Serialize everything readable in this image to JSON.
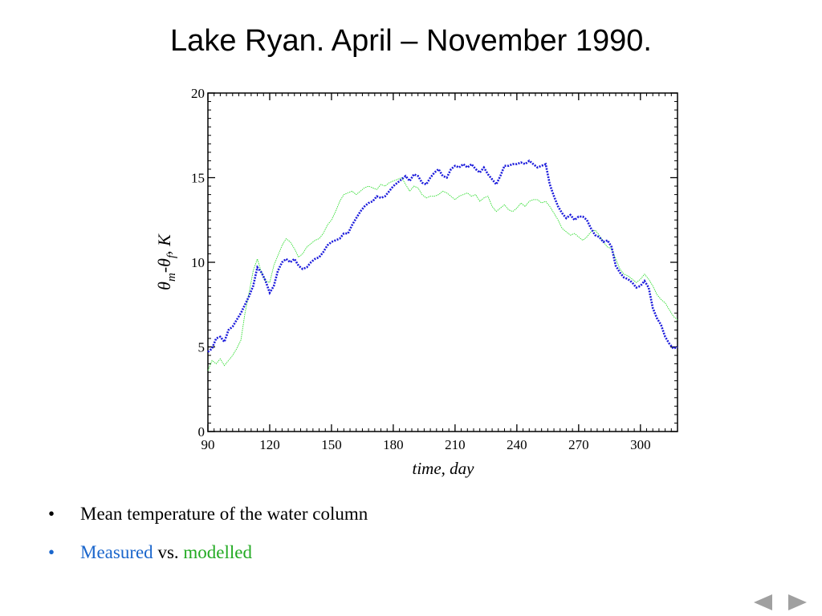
{
  "title": "Lake Ryan. April – November 1990.",
  "chart_data": {
    "type": "line",
    "xlabel": "time, day",
    "ylabel": {
      "theta1": "θ",
      "sub1": "m",
      "dash": "-",
      "theta2": "θ",
      "sub2": "f",
      "unit": ", K"
    },
    "xlim": [
      90,
      318
    ],
    "ylim": [
      0,
      20
    ],
    "xticks": [
      90,
      120,
      150,
      180,
      210,
      240,
      270,
      300
    ],
    "yticks": [
      0,
      5,
      10,
      15,
      20
    ],
    "grid": false,
    "series": [
      {
        "name": "Measured",
        "color": "#1a1adb",
        "style": "dotted-thick",
        "x": [
          90,
          92,
          94,
          96,
          98,
          100,
          102,
          104,
          106,
          108,
          110,
          112,
          114,
          116,
          118,
          120,
          122,
          124,
          126,
          128,
          130,
          132,
          134,
          136,
          138,
          140,
          142,
          144,
          146,
          148,
          150,
          152,
          154,
          156,
          158,
          160,
          162,
          164,
          166,
          168,
          170,
          172,
          174,
          176,
          178,
          180,
          182,
          184,
          186,
          188,
          190,
          192,
          194,
          196,
          198,
          200,
          202,
          204,
          206,
          208,
          210,
          212,
          214,
          216,
          218,
          220,
          222,
          224,
          226,
          228,
          230,
          232,
          234,
          236,
          238,
          240,
          242,
          244,
          246,
          248,
          250,
          252,
          254,
          256,
          258,
          260,
          262,
          264,
          266,
          268,
          270,
          272,
          274,
          276,
          278,
          280,
          282,
          284,
          286,
          288,
          290,
          292,
          294,
          296,
          298,
          300,
          302,
          304,
          306,
          308,
          310,
          312,
          314,
          316,
          318
        ],
        "values": [
          4.7,
          4.9,
          5.5,
          5.6,
          5.3,
          6.0,
          6.2,
          6.6,
          7.0,
          7.5,
          8.0,
          8.6,
          9.7,
          9.4,
          8.9,
          8.2,
          8.6,
          9.5,
          10.0,
          10.2,
          10.0,
          10.2,
          9.8,
          9.6,
          9.7,
          10.0,
          10.2,
          10.3,
          10.6,
          11.0,
          11.2,
          11.3,
          11.4,
          11.7,
          11.7,
          12.2,
          12.6,
          13.0,
          13.3,
          13.5,
          13.6,
          13.9,
          13.8,
          13.9,
          14.2,
          14.5,
          14.7,
          14.9,
          15.1,
          14.8,
          15.2,
          15.1,
          14.7,
          14.6,
          15.0,
          15.3,
          15.5,
          15.1,
          15.0,
          15.5,
          15.7,
          15.6,
          15.8,
          15.6,
          15.8,
          15.5,
          15.3,
          15.6,
          15.2,
          14.9,
          14.6,
          15.1,
          15.7,
          15.7,
          15.8,
          15.8,
          15.9,
          15.8,
          16.0,
          15.8,
          15.6,
          15.7,
          15.8,
          14.6,
          13.9,
          13.3,
          12.9,
          12.6,
          12.8,
          12.5,
          12.7,
          12.7,
          12.5,
          12.0,
          11.6,
          11.5,
          11.2,
          11.3,
          10.9,
          9.8,
          9.4,
          9.1,
          9.0,
          8.8,
          8.5,
          8.6,
          8.9,
          8.5,
          7.3,
          6.7,
          6.3,
          5.6,
          5.2,
          4.9,
          5.0
        ]
      },
      {
        "name": "modelled",
        "color": "#33dd33",
        "style": "thin",
        "x": [
          90,
          92,
          94,
          96,
          98,
          100,
          102,
          104,
          106,
          108,
          110,
          112,
          114,
          116,
          118,
          120,
          122,
          124,
          126,
          128,
          130,
          132,
          134,
          136,
          138,
          140,
          142,
          144,
          146,
          148,
          150,
          152,
          154,
          156,
          158,
          160,
          162,
          164,
          166,
          168,
          170,
          172,
          174,
          176,
          178,
          180,
          182,
          184,
          186,
          188,
          190,
          192,
          194,
          196,
          198,
          200,
          202,
          204,
          206,
          208,
          210,
          212,
          214,
          216,
          218,
          220,
          222,
          224,
          226,
          228,
          230,
          232,
          234,
          236,
          238,
          240,
          242,
          244,
          246,
          248,
          250,
          252,
          254,
          256,
          258,
          260,
          262,
          264,
          266,
          268,
          270,
          272,
          274,
          276,
          278,
          280,
          282,
          284,
          286,
          288,
          290,
          292,
          294,
          296,
          298,
          300,
          302,
          304,
          306,
          308,
          310,
          312,
          314,
          316,
          318
        ],
        "values": [
          3.6,
          4.2,
          4.0,
          4.3,
          3.9,
          4.2,
          4.5,
          4.9,
          5.4,
          7.0,
          8.2,
          9.5,
          10.2,
          9.4,
          8.9,
          8.8,
          9.8,
          10.4,
          11.0,
          11.4,
          11.2,
          10.8,
          10.3,
          10.5,
          10.9,
          11.1,
          11.3,
          11.4,
          11.7,
          12.2,
          12.5,
          13.0,
          13.6,
          14.0,
          14.1,
          14.2,
          14.0,
          14.2,
          14.4,
          14.5,
          14.4,
          14.3,
          14.6,
          14.5,
          14.7,
          14.8,
          14.9,
          15.0,
          14.6,
          14.2,
          14.5,
          14.4,
          14.0,
          13.8,
          13.9,
          13.9,
          14.0,
          14.2,
          14.1,
          13.9,
          13.7,
          13.9,
          14.0,
          14.1,
          13.9,
          14.0,
          13.6,
          13.8,
          13.9,
          13.3,
          13.0,
          13.2,
          13.4,
          13.1,
          13.0,
          13.2,
          13.5,
          13.3,
          13.6,
          13.7,
          13.7,
          13.5,
          13.6,
          13.3,
          12.9,
          12.5,
          12.0,
          11.8,
          11.6,
          11.7,
          11.5,
          11.3,
          11.5,
          11.8,
          11.9,
          11.6,
          11.2,
          10.9,
          10.8,
          10.2,
          9.6,
          9.3,
          9.2,
          9.0,
          8.8,
          9.0,
          9.3,
          9.0,
          8.6,
          8.1,
          7.8,
          7.6,
          7.2,
          6.8,
          6.6
        ]
      }
    ]
  },
  "bullets": [
    {
      "marker": "•",
      "text": "Mean temperature of the water column"
    },
    {
      "marker": "•",
      "part1": "Measured",
      "part2": " vs. ",
      "part3": "modelled"
    }
  ],
  "colors": {
    "measured_text": "#1a66cc",
    "modelled_text": "#22aa22",
    "nav": "#a0a0a0"
  },
  "nav": {
    "prev_icon": "triangle-left",
    "next_icon": "triangle-right"
  }
}
